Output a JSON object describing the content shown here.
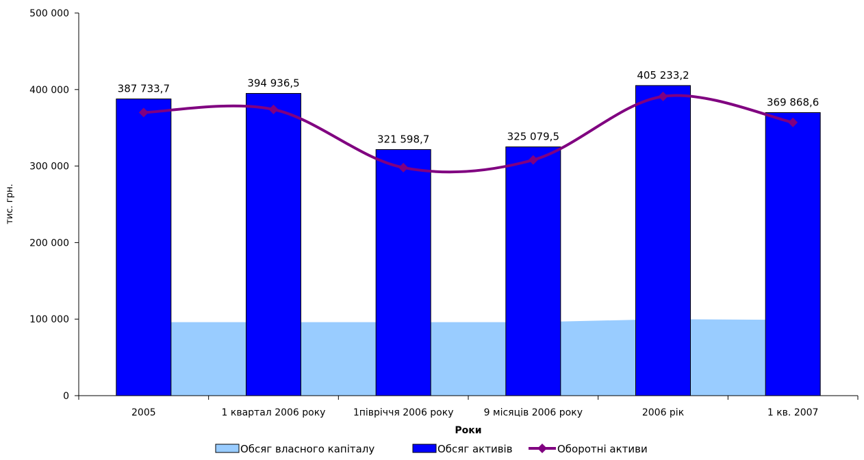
{
  "chart_data": {
    "type": "bar",
    "categories": [
      "2005",
      "1 квартал 2006 року",
      "1півріччя 2006 року",
      "9 місяців 2006 року",
      "2006 рік",
      "1 кв. 2007"
    ],
    "xlabel": "Роки",
    "ylabel": "тис. грн.",
    "ylim": [
      0,
      500000
    ],
    "yticks": [
      0,
      100000,
      200000,
      300000,
      400000,
      500000
    ],
    "ytick_labels": [
      "0",
      "100 000",
      "200 000",
      "300 000",
      "400 000",
      "500 000"
    ],
    "grid": false,
    "legend_position": "bottom",
    "series": [
      {
        "name": "Обсяг власного капіталу",
        "type": "area",
        "color": "#99ccff",
        "values": [
          96000,
          96000,
          96000,
          96000,
          100000,
          99000
        ]
      },
      {
        "name": "Обсяг активів",
        "type": "bar",
        "color": "#0000ff",
        "values": [
          387733.7,
          394936.5,
          321598.7,
          325079.5,
          405233.2,
          369868.6
        ],
        "data_labels": [
          "387 733,7",
          "394 936,5",
          "321 598,7",
          "325 079,5",
          "405 233,2",
          "369 868,6"
        ]
      },
      {
        "name": "Оборотні активи",
        "type": "line",
        "color": "#800080",
        "marker": "diamond",
        "values": [
          370000,
          374000,
          298000,
          308000,
          391000,
          357000
        ]
      }
    ]
  }
}
